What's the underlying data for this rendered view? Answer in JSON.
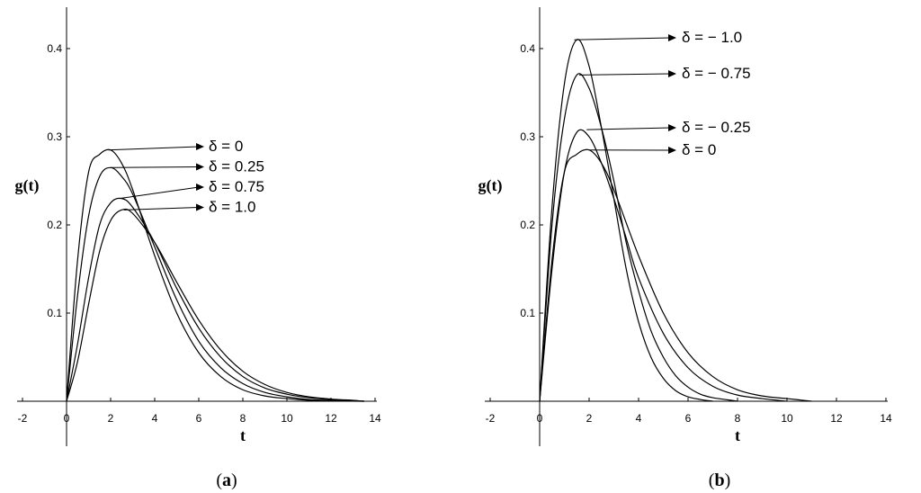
{
  "chart_data": [
    {
      "type": "line",
      "panel_label": "a",
      "xlabel": "t",
      "ylabel": "g(t)",
      "xlim": [
        -2,
        14
      ],
      "ylim": [
        0,
        0.45
      ],
      "xticks": [
        -2,
        0,
        2,
        4,
        6,
        8,
        10,
        12,
        14
      ],
      "yticks": [
        0.1,
        0.2,
        0.3,
        0.4
      ],
      "grid": false,
      "series": [
        {
          "name": "δ = 0",
          "x": [
            0,
            0.5,
            1,
            1.5,
            2,
            2.5,
            3,
            4,
            5,
            6,
            7,
            8,
            9,
            10,
            11,
            12,
            13,
            13.5
          ],
          "y": [
            0,
            0.16,
            0.26,
            0.28,
            0.285,
            0.27,
            0.24,
            0.165,
            0.1,
            0.055,
            0.028,
            0.013,
            0.006,
            0.003,
            0.001,
            0.0004,
            0.0001,
            0
          ]
        },
        {
          "name": "δ = 0.25",
          "x": [
            0,
            0.5,
            1,
            1.5,
            2,
            2.5,
            3,
            4,
            5,
            6,
            7,
            8,
            9,
            10,
            11,
            12,
            13,
            13.5
          ],
          "y": [
            0,
            0.12,
            0.21,
            0.255,
            0.265,
            0.255,
            0.235,
            0.175,
            0.115,
            0.068,
            0.038,
            0.02,
            0.01,
            0.005,
            0.002,
            0.001,
            0.0003,
            0
          ]
        },
        {
          "name": "δ = 0.75",
          "x": [
            0,
            0.5,
            1,
            1.5,
            2,
            2.5,
            3,
            4,
            5,
            6,
            7,
            8,
            9,
            10,
            11,
            12,
            13,
            13.5
          ],
          "y": [
            0,
            0.065,
            0.14,
            0.2,
            0.225,
            0.23,
            0.22,
            0.18,
            0.128,
            0.083,
            0.05,
            0.028,
            0.015,
            0.008,
            0.004,
            0.002,
            0.0008,
            0
          ]
        },
        {
          "name": "δ = 1.0",
          "x": [
            0,
            0.5,
            1,
            1.5,
            2,
            2.5,
            3,
            4,
            5,
            6,
            7,
            8,
            9,
            10,
            11,
            12,
            13,
            13.5
          ],
          "y": [
            0,
            0.045,
            0.11,
            0.17,
            0.205,
            0.217,
            0.213,
            0.18,
            0.135,
            0.092,
            0.058,
            0.034,
            0.019,
            0.01,
            0.005,
            0.0025,
            0.001,
            0
          ]
        }
      ],
      "annotations": [
        {
          "text": "δ = 0",
          "x": 1.9,
          "y": 0.285
        },
        {
          "text": "δ = 0.25",
          "x": 2.0,
          "y": 0.265
        },
        {
          "text": "δ = 0.75",
          "x": 2.4,
          "y": 0.23
        },
        {
          "text": "δ = 1.0",
          "x": 2.6,
          "y": 0.217
        }
      ]
    },
    {
      "type": "line",
      "panel_label": "b",
      "xlabel": "t",
      "ylabel": "g(t)",
      "xlim": [
        -2,
        14
      ],
      "ylim": [
        0,
        0.45
      ],
      "xticks": [
        -2,
        0,
        2,
        4,
        6,
        8,
        10,
        12,
        14
      ],
      "yticks": [
        0.1,
        0.2,
        0.3,
        0.4
      ],
      "grid": false,
      "series": [
        {
          "name": "δ = − 1.0",
          "x": [
            0,
            0.5,
            1,
            1.5,
            2,
            2.5,
            3,
            3.5,
            4,
            4.5,
            5,
            5.5,
            6,
            6.5,
            7
          ],
          "y": [
            0,
            0.22,
            0.36,
            0.41,
            0.38,
            0.31,
            0.23,
            0.15,
            0.09,
            0.05,
            0.026,
            0.012,
            0.005,
            0.002,
            0
          ]
        },
        {
          "name": "δ = − 0.75",
          "x": [
            0,
            0.5,
            1,
            1.5,
            2,
            2.5,
            3,
            3.5,
            4,
            4.5,
            5,
            5.5,
            6,
            6.5,
            7,
            7.5,
            8
          ],
          "y": [
            0,
            0.2,
            0.32,
            0.37,
            0.355,
            0.31,
            0.25,
            0.18,
            0.125,
            0.08,
            0.05,
            0.029,
            0.016,
            0.008,
            0.004,
            0.002,
            0
          ]
        },
        {
          "name": "δ = − 0.25",
          "x": [
            0,
            0.5,
            1,
            1.5,
            2,
            2.5,
            3,
            3.5,
            4,
            5,
            6,
            7,
            8,
            9,
            10
          ],
          "y": [
            0,
            0.15,
            0.26,
            0.305,
            0.3,
            0.27,
            0.23,
            0.185,
            0.14,
            0.077,
            0.038,
            0.017,
            0.007,
            0.003,
            0
          ]
        },
        {
          "name": "δ = 0",
          "x": [
            0,
            0.5,
            1,
            1.5,
            2,
            2.5,
            3,
            4,
            5,
            6,
            7,
            8,
            9,
            10,
            11
          ],
          "y": [
            0,
            0.16,
            0.26,
            0.28,
            0.285,
            0.27,
            0.24,
            0.165,
            0.1,
            0.055,
            0.028,
            0.013,
            0.006,
            0.003,
            0
          ]
        }
      ],
      "annotations": [
        {
          "text": "δ = − 1.0",
          "x": 1.4,
          "y": 0.41
        },
        {
          "text": "δ = − 0.75",
          "x": 1.6,
          "y": 0.37
        },
        {
          "text": "δ = − 0.25",
          "x": 1.9,
          "y": 0.308
        },
        {
          "text": "δ = 0",
          "x": 2.0,
          "y": 0.285
        }
      ]
    }
  ]
}
